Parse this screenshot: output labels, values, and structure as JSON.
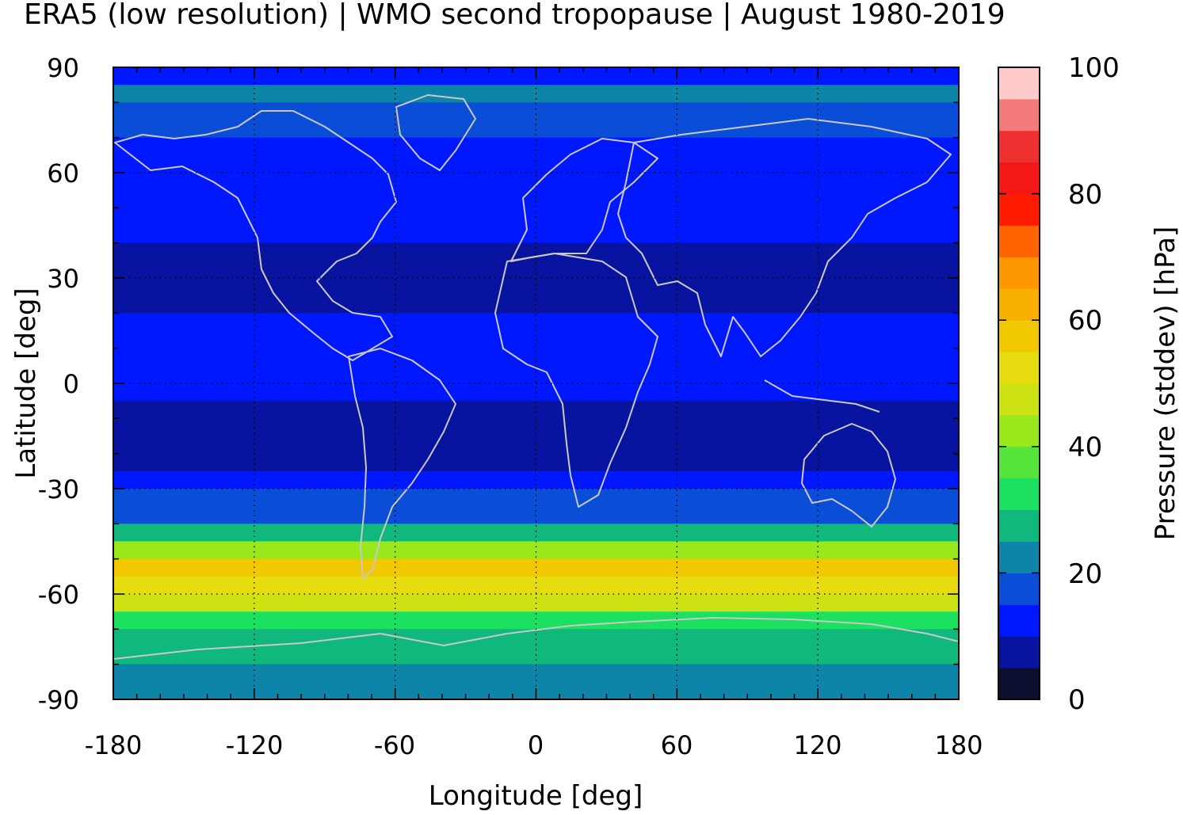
{
  "chart_data": {
    "type": "heatmap",
    "title": "ERA5 (low resolution) | WMO second tropopause | August 1980-2019",
    "xlabel": "Longitude [deg]",
    "ylabel": "Latitude [deg]",
    "colorbar_label": "Pressure (stddev) [hPa]",
    "xlim": [
      -180,
      180
    ],
    "ylim": [
      -90,
      90
    ],
    "xticks": [
      -180,
      -120,
      -60,
      0,
      60,
      120,
      180
    ],
    "yticks": [
      90,
      60,
      30,
      0,
      -30,
      -60,
      -90
    ],
    "x_grid_lines": [
      -120,
      -60,
      0,
      60,
      120
    ],
    "y_grid_lines": [
      60,
      30,
      0,
      -30,
      -60
    ],
    "colorbar_range": [
      0,
      100
    ],
    "colorbar_ticks": [
      100,
      80,
      60,
      40,
      20,
      0
    ],
    "colorbar_levels": [
      {
        "from": 0,
        "to": 5,
        "color": "#0c0f30"
      },
      {
        "from": 5,
        "to": 10,
        "color": "#0814a0"
      },
      {
        "from": 10,
        "to": 15,
        "color": "#0018ff"
      },
      {
        "from": 15,
        "to": 20,
        "color": "#0a4ed8"
      },
      {
        "from": 20,
        "to": 25,
        "color": "#0e85a8"
      },
      {
        "from": 25,
        "to": 30,
        "color": "#10b87c"
      },
      {
        "from": 30,
        "to": 35,
        "color": "#1be060"
      },
      {
        "from": 35,
        "to": 40,
        "color": "#55e43a"
      },
      {
        "from": 40,
        "to": 45,
        "color": "#98e81c"
      },
      {
        "from": 45,
        "to": 50,
        "color": "#cce212"
      },
      {
        "from": 50,
        "to": 55,
        "color": "#e6dc10"
      },
      {
        "from": 55,
        "to": 60,
        "color": "#f2c800"
      },
      {
        "from": 60,
        "to": 65,
        "color": "#f7b000"
      },
      {
        "from": 65,
        "to": 70,
        "color": "#ff9800"
      },
      {
        "from": 70,
        "to": 75,
        "color": "#ff6400"
      },
      {
        "from": 75,
        "to": 80,
        "color": "#ff1a00"
      },
      {
        "from": 80,
        "to": 85,
        "color": "#f51616"
      },
      {
        "from": 85,
        "to": 90,
        "color": "#ef3030"
      },
      {
        "from": 90,
        "to": 95,
        "color": "#f47a7a"
      },
      {
        "from": 95,
        "to": 100,
        "color": "#ffcaca"
      }
    ],
    "zonal_profile": [
      {
        "lat": 87.5,
        "value": 12
      },
      {
        "lat": 82.5,
        "value": 24
      },
      {
        "lat": 77.5,
        "value": 17
      },
      {
        "lat": 72.5,
        "value": 15
      },
      {
        "lat": 67.5,
        "value": 14
      },
      {
        "lat": 62.5,
        "value": 13
      },
      {
        "lat": 57.5,
        "value": 13
      },
      {
        "lat": 52.5,
        "value": 12.5
      },
      {
        "lat": 47.5,
        "value": 12
      },
      {
        "lat": 42.5,
        "value": 11
      },
      {
        "lat": 37.5,
        "value": 8
      },
      {
        "lat": 32.5,
        "value": 6.5
      },
      {
        "lat": 27.5,
        "value": 6
      },
      {
        "lat": 22.5,
        "value": 8
      },
      {
        "lat": 17.5,
        "value": 11
      },
      {
        "lat": 12.5,
        "value": 13
      },
      {
        "lat": 7.5,
        "value": 13
      },
      {
        "lat": 2.5,
        "value": 12
      },
      {
        "lat": -2.5,
        "value": 11
      },
      {
        "lat": -7.5,
        "value": 9
      },
      {
        "lat": -12.5,
        "value": 7.5
      },
      {
        "lat": -17.5,
        "value": 7
      },
      {
        "lat": -22.5,
        "value": 8.5
      },
      {
        "lat": -27.5,
        "value": 12
      },
      {
        "lat": -32.5,
        "value": 15
      },
      {
        "lat": -37.5,
        "value": 19
      },
      {
        "lat": -42.5,
        "value": 27
      },
      {
        "lat": -47.5,
        "value": 40
      },
      {
        "lat": -52.5,
        "value": 55
      },
      {
        "lat": -57.5,
        "value": 52
      },
      {
        "lat": -62.5,
        "value": 45
      },
      {
        "lat": -67.5,
        "value": 33
      },
      {
        "lat": -72.5,
        "value": 28
      },
      {
        "lat": -77.5,
        "value": 25
      },
      {
        "lat": -82.5,
        "value": 21
      },
      {
        "lat": -87.5,
        "value": 20
      }
    ],
    "features": {
      "coastlines": true,
      "coastline_color": "#c8c8c8",
      "grid": "dotted"
    }
  }
}
